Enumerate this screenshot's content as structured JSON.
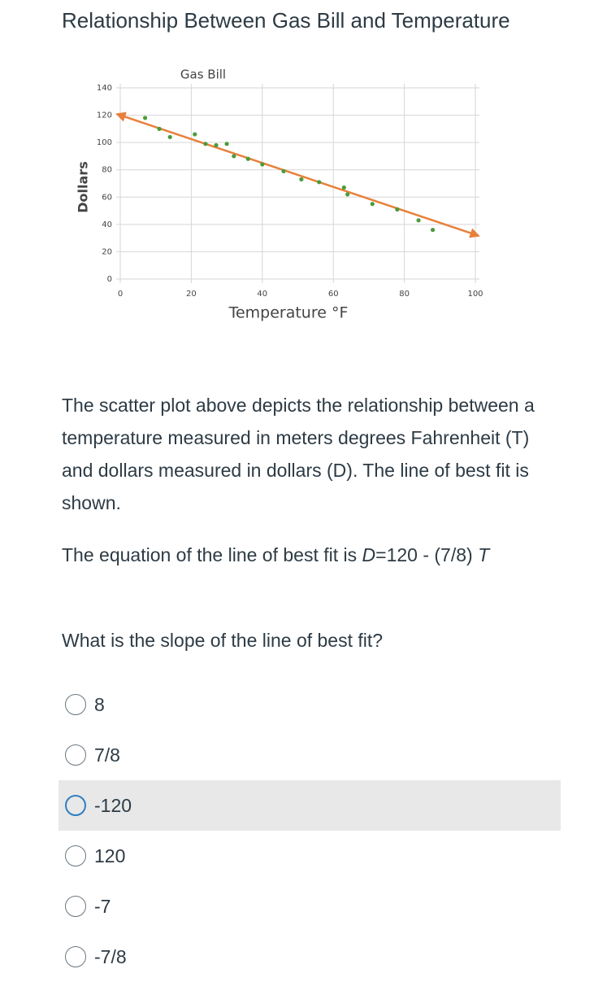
{
  "title": "Relationship Between Gas Bill and Temperature",
  "chart_data": {
    "type": "scatter",
    "title": "Gas Bill",
    "x_label": "Temperature °F",
    "y_label": "Dollars",
    "x": [
      7,
      11,
      14,
      21,
      24,
      27,
      30,
      32,
      36,
      40,
      46,
      51,
      56,
      63,
      64,
      71,
      78,
      84,
      88
    ],
    "y": [
      118,
      110,
      104,
      106,
      99,
      98,
      99,
      90,
      88,
      84,
      79,
      73,
      71,
      67,
      62,
      55,
      51,
      43,
      36
    ],
    "color": "#4a9c3b",
    "trend_line": {
      "x": [
        0,
        100
      ],
      "y": [
        120,
        32.5
      ],
      "color": "#e8803a"
    },
    "xlim": [
      0,
      100
    ],
    "ylim": [
      0,
      140
    ],
    "xticks": [
      0,
      20,
      40,
      60,
      80,
      100
    ],
    "yticks": [
      0,
      20,
      40,
      60,
      80,
      100,
      120,
      140
    ],
    "grid": true
  },
  "description": "The scatter plot above depicts the relationship between a temperature measured in meters degrees Fahrenheit (T) and dollars measured in dollars (D). The line of best fit is shown.",
  "equation": {
    "text": "The equation of the line of best fit is ",
    "lhs": "D",
    "rhs": "=120 - (7/8)",
    "var": "T"
  },
  "question": "What is the slope of the line of best fit?",
  "options": [
    "8",
    "7/8",
    "-120",
    "120",
    "-7",
    "-7/8"
  ]
}
